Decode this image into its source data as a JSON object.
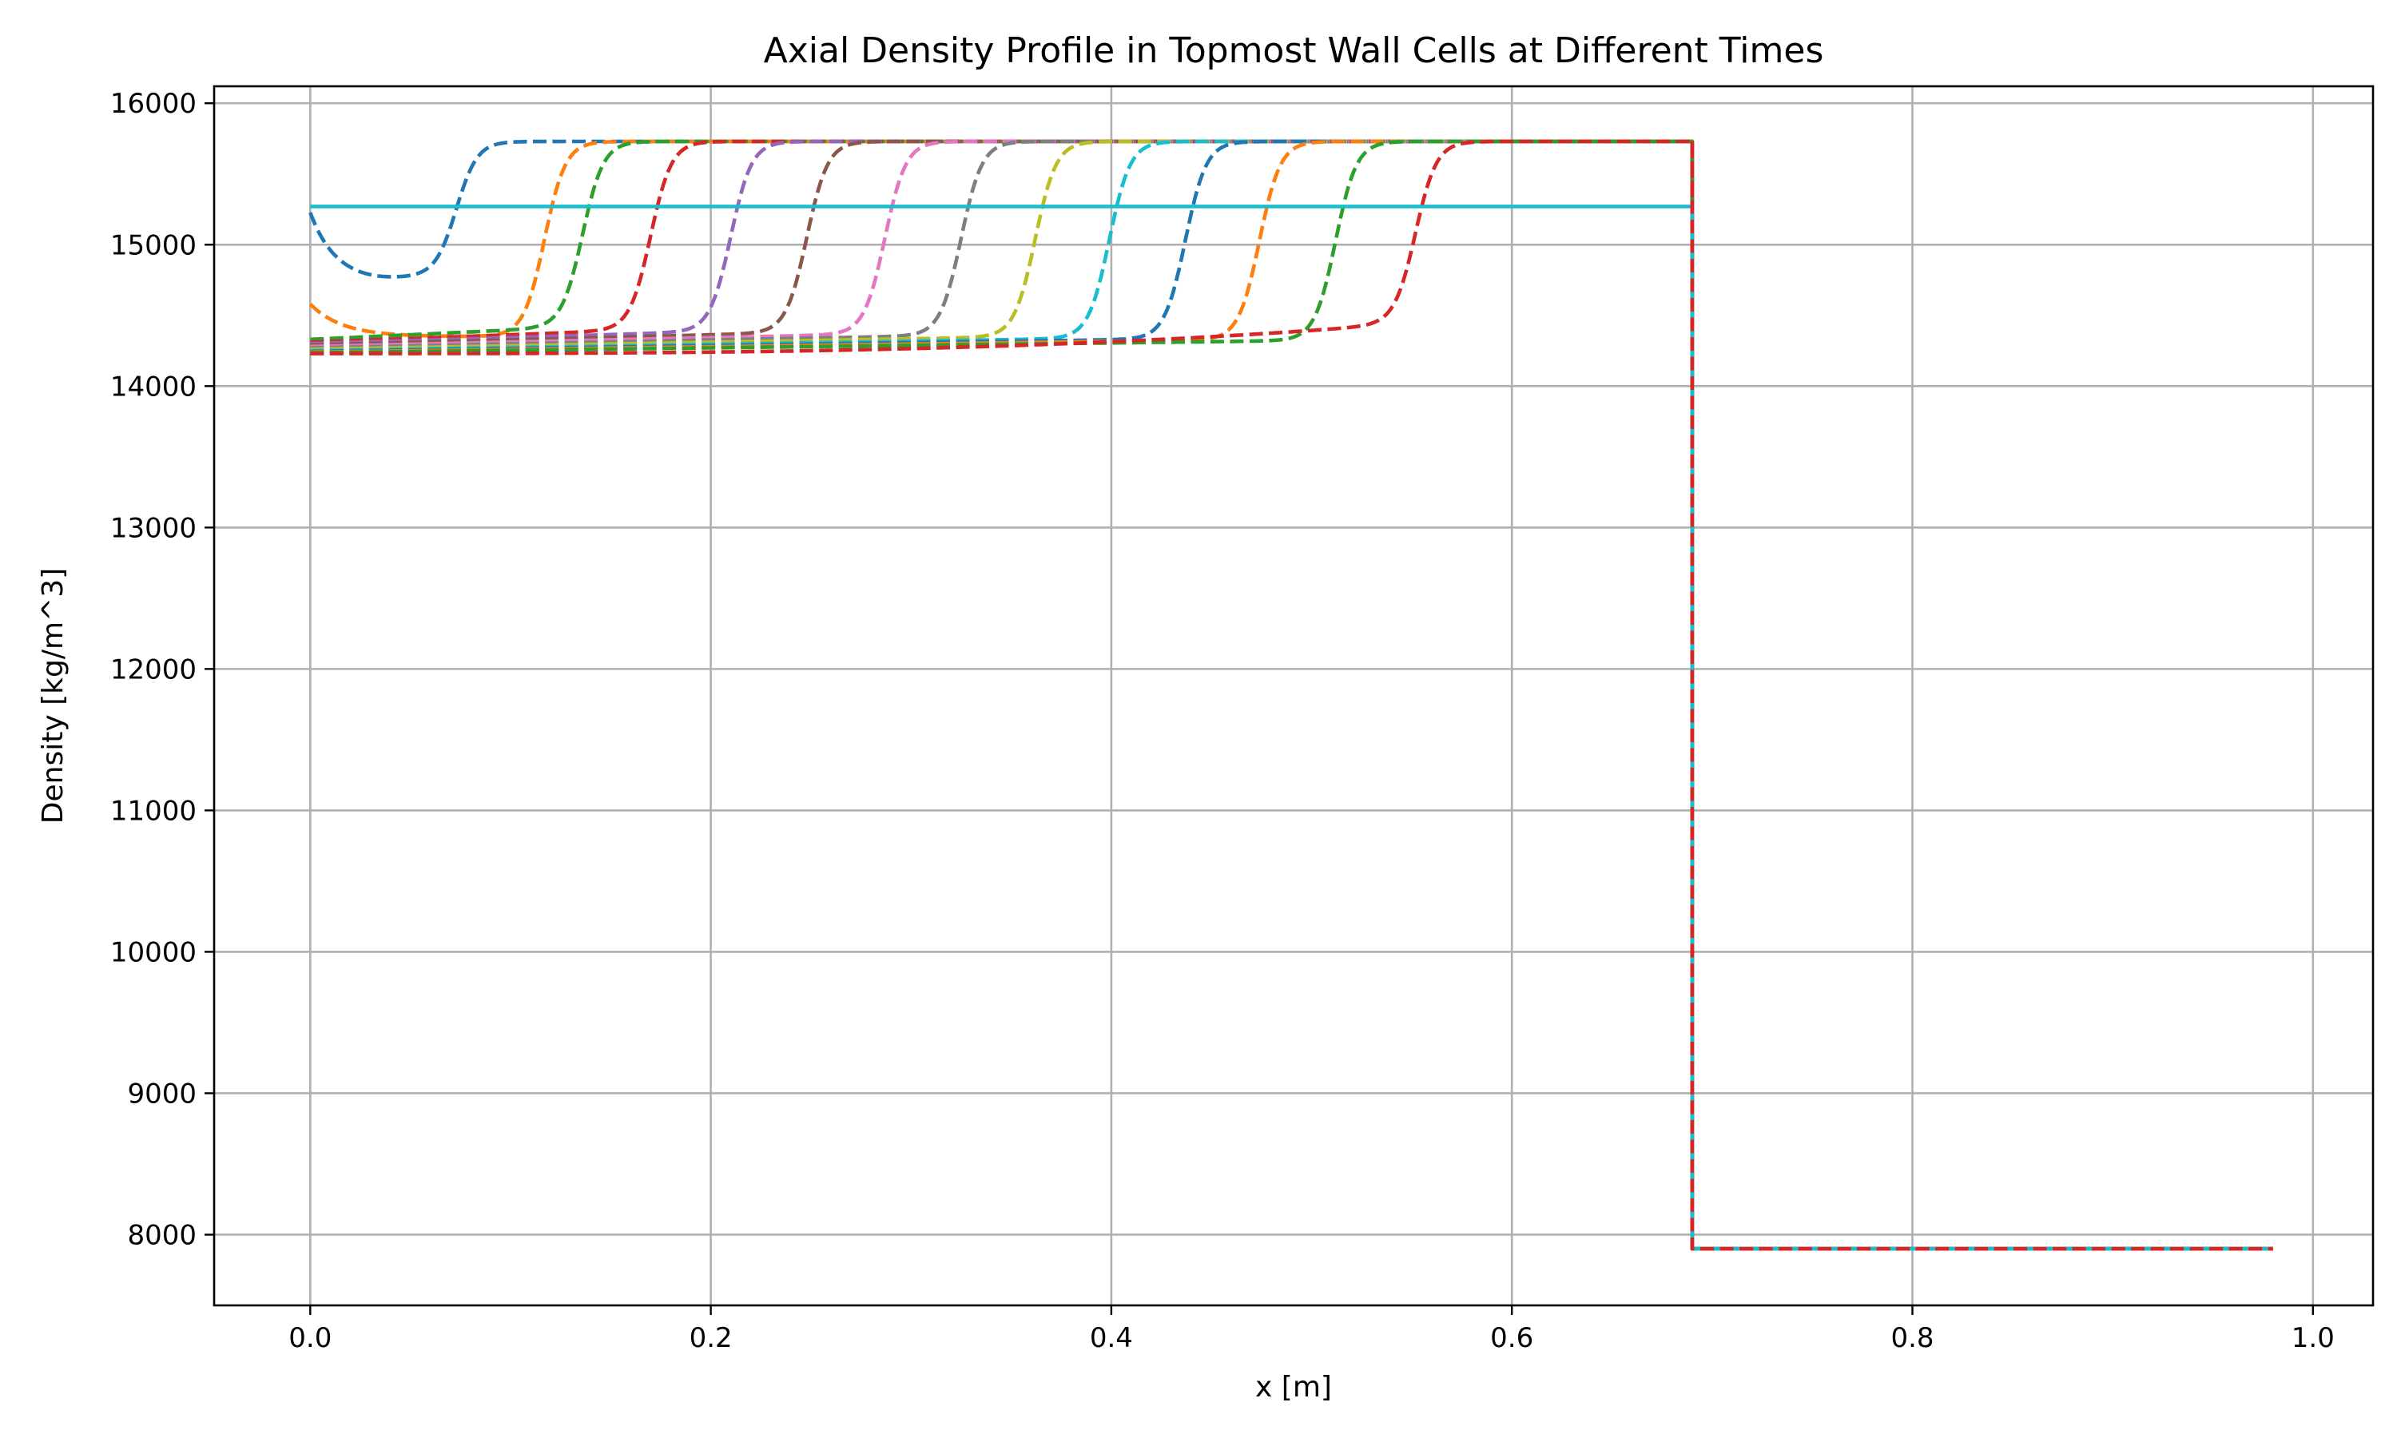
{
  "chart_data": {
    "type": "line",
    "title": "Axial Density Profile in Topmost Wall Cells at Different Times",
    "xlabel": "x [m]",
    "ylabel": "Density [kg/m^3]",
    "xlim": [
      -0.048,
      1.03
    ],
    "ylim": [
      7500,
      16120
    ],
    "xticks": [
      0.0,
      0.2,
      0.4,
      0.6,
      0.8,
      1.0
    ],
    "xtick_labels": [
      "0.0",
      "0.2",
      "0.4",
      "0.6",
      "0.8",
      "1.0"
    ],
    "yticks": [
      8000,
      9000,
      10000,
      11000,
      12000,
      13000,
      14000,
      15000,
      16000
    ],
    "ytick_labels": [
      "8000",
      "9000",
      "10000",
      "11000",
      "12000",
      "13000",
      "14000",
      "15000",
      "16000"
    ],
    "grid": true,
    "legend": "none",
    "x_domain": [
      0.0,
      0.98
    ],
    "step_x": 0.69,
    "rho_high": 15730,
    "rho_init": 15270,
    "rho_low": 7900,
    "initial_series": {
      "color": "#17becf",
      "style": "solid",
      "value": 15270
    },
    "series": [
      {
        "color": "#1f77b4",
        "front_x": 0.073,
        "low_value": 14770,
        "start_value": 15230
      },
      {
        "color": "#ff7f0e",
        "front_x": 0.117,
        "low_value": 14350,
        "start_value": 14580
      },
      {
        "color": "#2ca02c",
        "front_x": 0.136,
        "low_value": 14330
      },
      {
        "color": "#d62728",
        "front_x": 0.17,
        "low_value": 14310
      },
      {
        "color": "#9467bd",
        "front_x": 0.21,
        "low_value": 14300
      },
      {
        "color": "#8c564b",
        "front_x": 0.248,
        "low_value": 14290
      },
      {
        "color": "#e377c2",
        "front_x": 0.287,
        "low_value": 14280
      },
      {
        "color": "#7f7f7f",
        "front_x": 0.325,
        "low_value": 14270
      },
      {
        "color": "#bcbd22",
        "front_x": 0.362,
        "low_value": 14260
      },
      {
        "color": "#17becf",
        "front_x": 0.399,
        "low_value": 14250
      },
      {
        "color": "#1f77b4",
        "front_x": 0.437,
        "low_value": 14245
      },
      {
        "color": "#ff7f0e",
        "front_x": 0.474,
        "low_value": 14240
      },
      {
        "color": "#2ca02c",
        "front_x": 0.512,
        "low_value": 14235
      },
      {
        "color": "#d62728",
        "front_x": 0.552,
        "low_value": 14230
      }
    ]
  }
}
